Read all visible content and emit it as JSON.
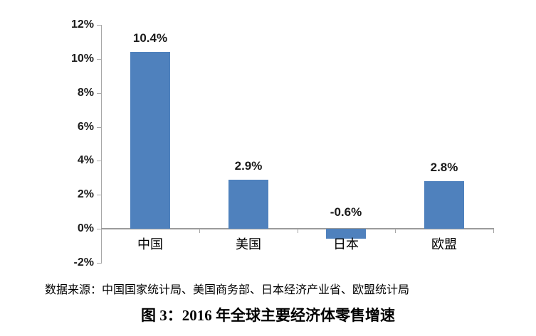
{
  "chart_data": {
    "type": "bar",
    "categories": [
      "中国",
      "美国",
      "日本",
      "欧盟"
    ],
    "values": [
      10.4,
      2.9,
      -0.6,
      2.8
    ],
    "data_labels": [
      "10.4%",
      "2.9%",
      "-0.6%",
      "2.8%"
    ],
    "series": [
      {
        "name": "零售增速",
        "values": [
          10.4,
          2.9,
          -0.6,
          2.8
        ]
      }
    ],
    "ylim": [
      -2,
      12
    ],
    "ytick_step": 2,
    "ytick_labels": [
      "12%",
      "10%",
      "8%",
      "6%",
      "4%",
      "2%",
      "0%",
      "-2%"
    ],
    "grid": false,
    "legend_position": "none",
    "xlabel": "",
    "ylabel": "",
    "bar_color": "#4F81BD",
    "axis_color": "#A6A6A6",
    "title": "图 3：2016 年全球主要经济体零售增速",
    "source_note": "数据来源：中国国家统计局、美国商务部、日本经济产业省、欧盟统计局"
  }
}
